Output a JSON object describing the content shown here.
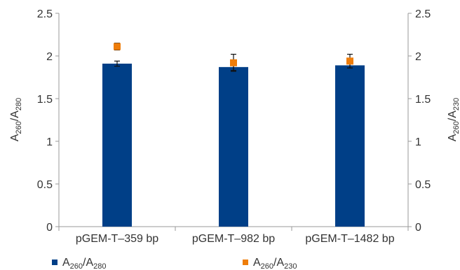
{
  "chart_data": {
    "type": "bar",
    "categories": [
      "pGEM-T–359 bp",
      "pGEM-T–982 bp",
      "pGEM-T–1482 bp"
    ],
    "series": [
      {
        "name": "A260/A280",
        "kind": "bar",
        "values": [
          1.91,
          1.87,
          1.89
        ],
        "error": [
          0.03,
          0.04,
          0.03
        ],
        "color": "#003f87"
      },
      {
        "name": "A260/A230",
        "kind": "marker",
        "values": [
          2.11,
          1.92,
          1.94
        ],
        "error": [
          0.04,
          0.1,
          0.08
        ],
        "color": "#ee7d0a"
      }
    ],
    "ylim": [
      0,
      2.5
    ],
    "yticks": [
      "0",
      "0.5",
      "1",
      "1.5",
      "2",
      "2.5"
    ],
    "y2lim": [
      0,
      2.5
    ],
    "y2ticks": [
      "0",
      "0.5",
      "1",
      "1.5",
      "2",
      "2.5"
    ],
    "ylabel": {
      "main": "A",
      "sub1": "260",
      "sep": "/",
      "main2": "A",
      "sub2": "280"
    },
    "y2label": {
      "main": "A",
      "sub1": "260",
      "sep": "/",
      "main2": "A",
      "sub2": "230"
    },
    "legend": {
      "placement": "bottom",
      "items": [
        {
          "main": "A",
          "sub1": "260",
          "sep": "/",
          "main2": "A",
          "sub2": "280",
          "color": "#003f87"
        },
        {
          "main": "A",
          "sub1": "260",
          "sep": "/",
          "main2": "A",
          "sub2": "230",
          "color": "#ee7d0a"
        }
      ]
    },
    "grid": false
  }
}
